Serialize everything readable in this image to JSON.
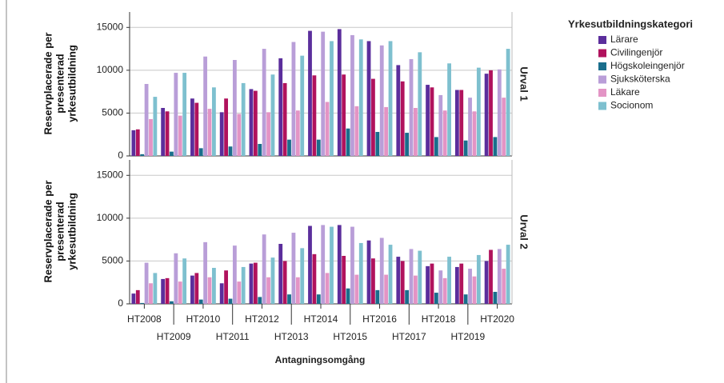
{
  "chart_data": [
    {
      "type": "bar",
      "facet": "Urval 1",
      "y_label": "Reservplacerade per presenterad yrkesutbildning",
      "legend_title": "Yrkesutbildningskategori",
      "categories": [
        "HT2008",
        "HT2009",
        "HT2010",
        "HT2011",
        "HT2012",
        "HT2013",
        "HT2014",
        "HT2015",
        "HT2016",
        "HT2017",
        "HT2018",
        "HT2019",
        "HT2020"
      ],
      "ylim": [
        0,
        16800
      ],
      "yticks": [
        0,
        5000,
        10000,
        15000
      ],
      "grid": true,
      "series": [
        {
          "name": "Lärare",
          "color": "#5b2e9c",
          "values": [
            3000,
            5600,
            6700,
            5100,
            7800,
            11400,
            14600,
            14800,
            13400,
            10600,
            8300,
            7700,
            9600
          ]
        },
        {
          "name": "Civilingenjör",
          "color": "#b0125d",
          "values": [
            3100,
            5200,
            6200,
            6700,
            7600,
            8500,
            9400,
            9500,
            9000,
            8700,
            8000,
            7700,
            10000
          ]
        },
        {
          "name": "Högskoleingenjör",
          "color": "#1a6e8c",
          "values": [
            200,
            500,
            900,
            1100,
            1400,
            1900,
            1900,
            3200,
            2800,
            2700,
            2200,
            1800,
            2200
          ]
        },
        {
          "name": "Sjuksköterska",
          "color": "#b99ed8",
          "values": [
            8400,
            9700,
            11600,
            11200,
            12500,
            13300,
            14500,
            14100,
            12900,
            11300,
            7100,
            6800,
            10100
          ]
        },
        {
          "name": "Läkare",
          "color": "#e394c5",
          "values": [
            4300,
            4700,
            5500,
            4900,
            5100,
            5300,
            6300,
            5800,
            5700,
            5600,
            5300,
            5200,
            6800
          ]
        },
        {
          "name": "Socionom",
          "color": "#7ec0cf",
          "values": [
            6900,
            9700,
            8000,
            8500,
            9500,
            11700,
            13400,
            13600,
            13400,
            12100,
            10800,
            10300,
            12500
          ]
        }
      ]
    },
    {
      "type": "bar",
      "facet": "Urval 2",
      "y_label": "Reservplacerade per presenterad yrkesutbildning",
      "x_label": "Antagningsomgång",
      "categories": [
        "HT2008",
        "HT2009",
        "HT2010",
        "HT2011",
        "HT2012",
        "HT2013",
        "HT2014",
        "HT2015",
        "HT2016",
        "HT2017",
        "HT2018",
        "HT2019",
        "HT2020"
      ],
      "ylim": [
        0,
        16800
      ],
      "yticks": [
        0,
        5000,
        10000,
        15000
      ],
      "grid": true,
      "series": [
        {
          "name": "Lärare",
          "color": "#5b2e9c",
          "values": [
            1200,
            2900,
            3300,
            2400,
            4700,
            7000,
            9100,
            9200,
            7400,
            5500,
            4400,
            4300,
            5000
          ]
        },
        {
          "name": "Civilingenjör",
          "color": "#b0125d",
          "values": [
            1600,
            3000,
            3600,
            3900,
            4800,
            5000,
            5800,
            5600,
            5300,
            5000,
            4700,
            4700,
            6300
          ]
        },
        {
          "name": "Högskoleingenjör",
          "color": "#1a6e8c",
          "values": [
            100,
            300,
            500,
            600,
            800,
            1100,
            1100,
            1800,
            1600,
            1600,
            1300,
            1100,
            1400
          ]
        },
        {
          "name": "Sjuksköterska",
          "color": "#b99ed8",
          "values": [
            4800,
            5900,
            7200,
            6800,
            8100,
            8300,
            9200,
            9000,
            7700,
            6400,
            3900,
            4100,
            6400
          ]
        },
        {
          "name": "Läkare",
          "color": "#e394c5",
          "values": [
            2400,
            2600,
            3100,
            2600,
            3100,
            3100,
            3600,
            3400,
            3400,
            3300,
            3000,
            3200,
            4100
          ]
        },
        {
          "name": "Socionom",
          "color": "#7ec0cf",
          "values": [
            3600,
            5300,
            4200,
            4300,
            5400,
            6500,
            9000,
            7100,
            6900,
            6200,
            5500,
            5700,
            6900
          ]
        }
      ]
    }
  ]
}
